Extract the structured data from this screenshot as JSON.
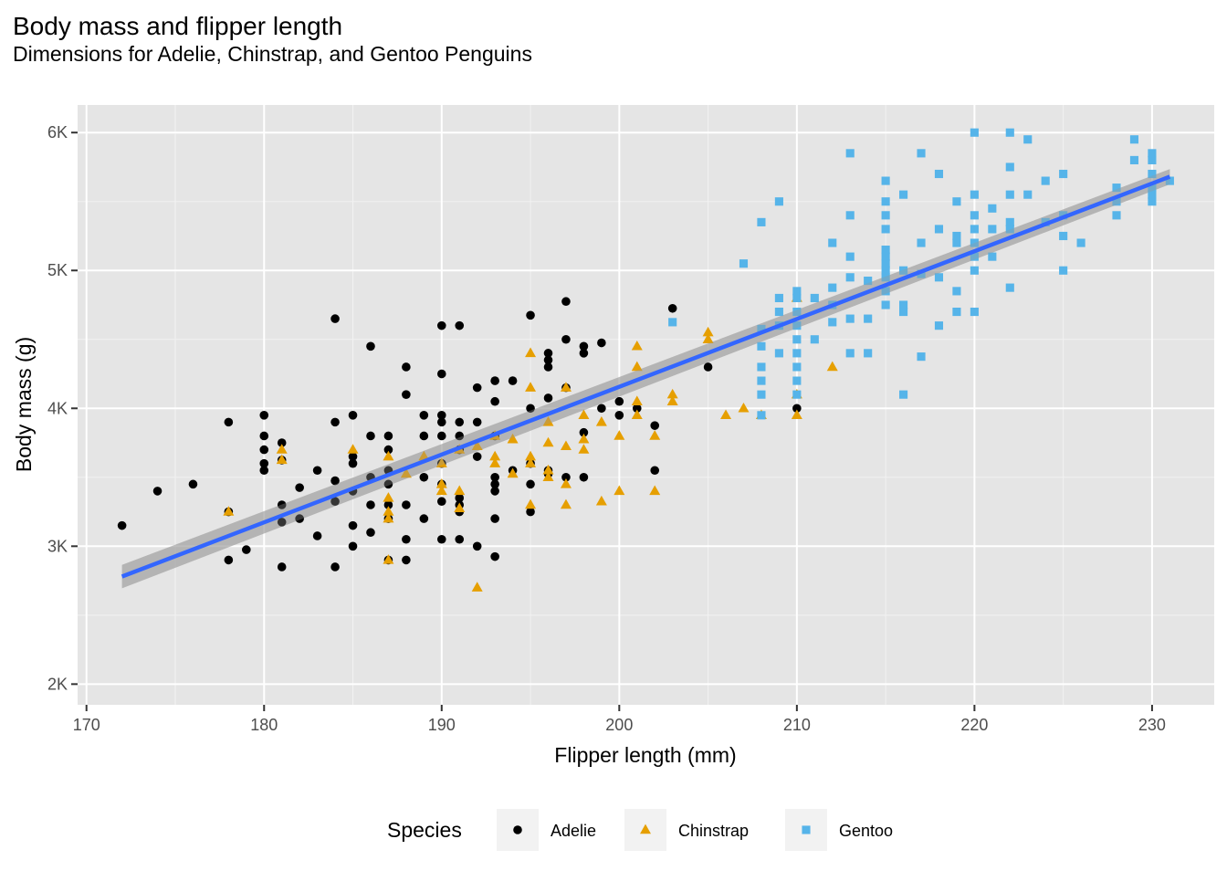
{
  "chart_data": {
    "type": "scatter",
    "title": "Body mass and flipper length",
    "subtitle": "Dimensions for Adelie, Chinstrap, and Gentoo Penguins",
    "xlabel": "Flipper length (mm)",
    "ylabel": "Body mass (g)",
    "xlim": [
      169.5,
      233.5
    ],
    "ylim": [
      1850,
      6200
    ],
    "x_ticks": [
      170,
      180,
      190,
      200,
      210,
      220,
      230
    ],
    "x_tick_labels": [
      "170",
      "180",
      "190",
      "200",
      "210",
      "220",
      "230"
    ],
    "y_ticks": [
      2000,
      3000,
      4000,
      5000,
      6000
    ],
    "y_tick_labels": [
      "2K",
      "3K",
      "4K",
      "5K",
      "6K"
    ],
    "grid": true,
    "legend": {
      "title": "Species",
      "position": "bottom"
    },
    "smooth": {
      "method": "linear",
      "color": "#3366ff",
      "x": [
        172,
        231
      ],
      "y": [
        2780,
        5680
      ],
      "band_halfwidth": [
        85,
        55
      ]
    },
    "series": [
      {
        "name": "Adelie",
        "color": "#000000",
        "marker": "circle",
        "points": [
          [
            172,
            3150
          ],
          [
            174,
            3400
          ],
          [
            176,
            3450
          ],
          [
            178,
            3900
          ],
          [
            178,
            2900
          ],
          [
            178,
            3250
          ],
          [
            179,
            2975
          ],
          [
            180,
            3950
          ],
          [
            180,
            3800
          ],
          [
            180,
            3700
          ],
          [
            180,
            3600
          ],
          [
            180,
            3550
          ],
          [
            181,
            3750
          ],
          [
            181,
            3625
          ],
          [
            181,
            3300
          ],
          [
            181,
            3175
          ],
          [
            181,
            2850
          ],
          [
            182,
            3425
          ],
          [
            182,
            3200
          ],
          [
            183,
            3550
          ],
          [
            183,
            3075
          ],
          [
            184,
            4650
          ],
          [
            184,
            3900
          ],
          [
            184,
            3475
          ],
          [
            184,
            3325
          ],
          [
            184,
            2850
          ],
          [
            185,
            3950
          ],
          [
            185,
            3650
          ],
          [
            185,
            3600
          ],
          [
            185,
            3400
          ],
          [
            185,
            3150
          ],
          [
            185,
            3000
          ],
          [
            186,
            4450
          ],
          [
            186,
            3800
          ],
          [
            186,
            3500
          ],
          [
            186,
            3300
          ],
          [
            186,
            3100
          ],
          [
            187,
            3800
          ],
          [
            187,
            3700
          ],
          [
            187,
            3550
          ],
          [
            187,
            3450
          ],
          [
            187,
            3300
          ],
          [
            187,
            3200
          ],
          [
            187,
            2900
          ],
          [
            188,
            4300
          ],
          [
            188,
            4100
          ],
          [
            188,
            3300
          ],
          [
            188,
            3050
          ],
          [
            188,
            2900
          ],
          [
            189,
            3950
          ],
          [
            189,
            3800
          ],
          [
            189,
            3500
          ],
          [
            189,
            3200
          ],
          [
            190,
            4600
          ],
          [
            190,
            4250
          ],
          [
            190,
            3950
          ],
          [
            190,
            3900
          ],
          [
            190,
            3800
          ],
          [
            190,
            3600
          ],
          [
            190,
            3450
          ],
          [
            190,
            3325
          ],
          [
            190,
            3050
          ],
          [
            191,
            4600
          ],
          [
            191,
            3900
          ],
          [
            191,
            3800
          ],
          [
            191,
            3700
          ],
          [
            191,
            3350
          ],
          [
            191,
            3300
          ],
          [
            191,
            3250
          ],
          [
            191,
            3050
          ],
          [
            192,
            4150
          ],
          [
            192,
            3900
          ],
          [
            192,
            3650
          ],
          [
            192,
            3000
          ],
          [
            193,
            4200
          ],
          [
            193,
            4050
          ],
          [
            193,
            3800
          ],
          [
            193,
            3500
          ],
          [
            193,
            3450
          ],
          [
            193,
            3400
          ],
          [
            193,
            3200
          ],
          [
            193,
            2925
          ],
          [
            194,
            4200
          ],
          [
            194,
            3550
          ],
          [
            195,
            4675
          ],
          [
            195,
            4000
          ],
          [
            195,
            3600
          ],
          [
            195,
            3450
          ],
          [
            195,
            3250
          ],
          [
            196,
            4400
          ],
          [
            196,
            4350
          ],
          [
            196,
            4300
          ],
          [
            196,
            4075
          ],
          [
            196,
            3550
          ],
          [
            196,
            3525
          ],
          [
            197,
            4775
          ],
          [
            197,
            4500
          ],
          [
            197,
            4150
          ],
          [
            197,
            3500
          ],
          [
            198,
            4450
          ],
          [
            198,
            4400
          ],
          [
            198,
            3825
          ],
          [
            198,
            3500
          ],
          [
            199,
            4475
          ],
          [
            199,
            4000
          ],
          [
            200,
            4050
          ],
          [
            200,
            3950
          ],
          [
            201,
            4000
          ],
          [
            202,
            3875
          ],
          [
            202,
            3550
          ],
          [
            203,
            4725
          ],
          [
            205,
            4300
          ],
          [
            210,
            4000
          ]
        ]
      },
      {
        "name": "Chinstrap",
        "color": "#e69f00",
        "marker": "triangle",
        "points": [
          [
            178,
            3250
          ],
          [
            181,
            3700
          ],
          [
            181,
            3625
          ],
          [
            185,
            3700
          ],
          [
            187,
            3650
          ],
          [
            187,
            3350
          ],
          [
            187,
            3250
          ],
          [
            187,
            3200
          ],
          [
            187,
            2900
          ],
          [
            188,
            3525
          ],
          [
            189,
            3650
          ],
          [
            190,
            3450
          ],
          [
            190,
            3400
          ],
          [
            190,
            3600
          ],
          [
            191,
            3400
          ],
          [
            191,
            3275
          ],
          [
            191,
            3700
          ],
          [
            192,
            3725
          ],
          [
            192,
            2700
          ],
          [
            193,
            3800
          ],
          [
            193,
            3650
          ],
          [
            193,
            3600
          ],
          [
            194,
            3775
          ],
          [
            194,
            3525
          ],
          [
            195,
            4400
          ],
          [
            195,
            4150
          ],
          [
            195,
            3650
          ],
          [
            195,
            3600
          ],
          [
            195,
            3300
          ],
          [
            196,
            3900
          ],
          [
            196,
            3500
          ],
          [
            196,
            3550
          ],
          [
            196,
            3750
          ],
          [
            197,
            4150
          ],
          [
            197,
            3725
          ],
          [
            197,
            3450
          ],
          [
            197,
            3300
          ],
          [
            198,
            3950
          ],
          [
            198,
            3700
          ],
          [
            198,
            3775
          ],
          [
            199,
            3900
          ],
          [
            199,
            3325
          ],
          [
            200,
            3400
          ],
          [
            200,
            3800
          ],
          [
            201,
            4450
          ],
          [
            201,
            4300
          ],
          [
            201,
            4050
          ],
          [
            201,
            3950
          ],
          [
            202,
            3800
          ],
          [
            202,
            3400
          ],
          [
            203,
            4100
          ],
          [
            203,
            4050
          ],
          [
            205,
            4550
          ],
          [
            205,
            4500
          ],
          [
            206,
            3950
          ],
          [
            207,
            4000
          ],
          [
            208,
            3950
          ],
          [
            210,
            4800
          ],
          [
            210,
            4100
          ],
          [
            210,
            3950
          ],
          [
            212,
            4300
          ]
        ]
      },
      {
        "name": "Gentoo",
        "color": "#56b4e9",
        "marker": "square",
        "points": [
          [
            203,
            4625
          ],
          [
            207,
            5050
          ],
          [
            208,
            5350
          ],
          [
            208,
            4575
          ],
          [
            208,
            4450
          ],
          [
            208,
            4300
          ],
          [
            208,
            4200
          ],
          [
            208,
            4100
          ],
          [
            208,
            3950
          ],
          [
            209,
            5500
          ],
          [
            209,
            4800
          ],
          [
            209,
            4700
          ],
          [
            209,
            4600
          ],
          [
            209,
            4400
          ],
          [
            210,
            4850
          ],
          [
            210,
            4800
          ],
          [
            210,
            4700
          ],
          [
            210,
            4600
          ],
          [
            210,
            4500
          ],
          [
            210,
            4400
          ],
          [
            210,
            4300
          ],
          [
            210,
            4200
          ],
          [
            210,
            4100
          ],
          [
            211,
            4800
          ],
          [
            211,
            4500
          ],
          [
            212,
            5200
          ],
          [
            212,
            4875
          ],
          [
            212,
            4750
          ],
          [
            212,
            4625
          ],
          [
            213,
            5850
          ],
          [
            213,
            5400
          ],
          [
            213,
            5100
          ],
          [
            213,
            4950
          ],
          [
            213,
            4650
          ],
          [
            213,
            4400
          ],
          [
            214,
            4925
          ],
          [
            214,
            4650
          ],
          [
            214,
            4400
          ],
          [
            215,
            5650
          ],
          [
            215,
            5500
          ],
          [
            215,
            5400
          ],
          [
            215,
            5300
          ],
          [
            215,
            5150
          ],
          [
            215,
            5100
          ],
          [
            215,
            5050
          ],
          [
            215,
            5000
          ],
          [
            215,
            4950
          ],
          [
            215,
            4850
          ],
          [
            215,
            4750
          ],
          [
            216,
            5550
          ],
          [
            216,
            5000
          ],
          [
            216,
            4750
          ],
          [
            216,
            4700
          ],
          [
            216,
            4100
          ],
          [
            217,
            5850
          ],
          [
            217,
            5200
          ],
          [
            217,
            4975
          ],
          [
            217,
            4375
          ],
          [
            218,
            5700
          ],
          [
            218,
            5300
          ],
          [
            218,
            4950
          ],
          [
            218,
            4600
          ],
          [
            219,
            5500
          ],
          [
            219,
            5250
          ],
          [
            219,
            5200
          ],
          [
            219,
            4850
          ],
          [
            219,
            4700
          ],
          [
            220,
            6000
          ],
          [
            220,
            5550
          ],
          [
            220,
            5400
          ],
          [
            220,
            5300
          ],
          [
            220,
            5200
          ],
          [
            220,
            5100
          ],
          [
            220,
            5000
          ],
          [
            220,
            4700
          ],
          [
            221,
            5450
          ],
          [
            221,
            5300
          ],
          [
            221,
            5100
          ],
          [
            222,
            6000
          ],
          [
            222,
            5750
          ],
          [
            222,
            5550
          ],
          [
            222,
            5350
          ],
          [
            222,
            5300
          ],
          [
            222,
            4875
          ],
          [
            223,
            5950
          ],
          [
            223,
            5550
          ],
          [
            224,
            5650
          ],
          [
            224,
            5350
          ],
          [
            225,
            5700
          ],
          [
            225,
            5400
          ],
          [
            225,
            5250
          ],
          [
            225,
            5000
          ],
          [
            226,
            5200
          ],
          [
            228,
            5600
          ],
          [
            228,
            5500
          ],
          [
            228,
            5400
          ],
          [
            229,
            5950
          ],
          [
            229,
            5800
          ],
          [
            230,
            5850
          ],
          [
            230,
            5800
          ],
          [
            230,
            5700
          ],
          [
            230,
            5600
          ],
          [
            230,
            5550
          ],
          [
            230,
            5500
          ],
          [
            231,
            5650
          ]
        ]
      }
    ]
  }
}
